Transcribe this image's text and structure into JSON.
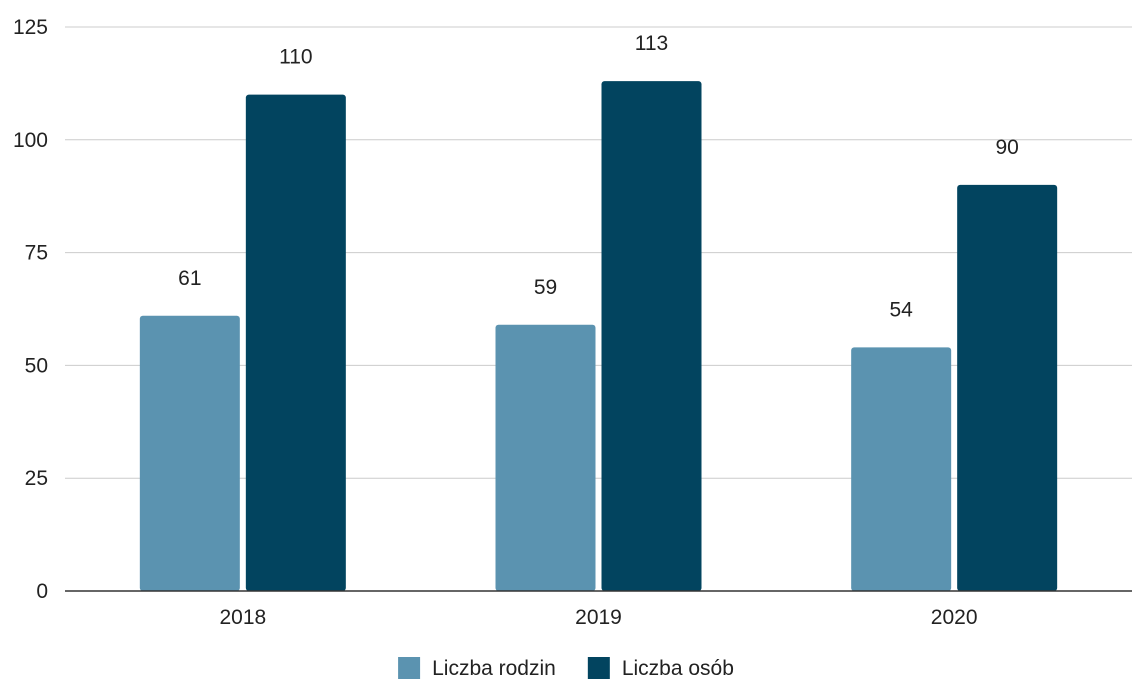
{
  "chart_data": {
    "type": "bar",
    "categories": [
      "2018",
      "2019",
      "2020"
    ],
    "series": [
      {
        "name": "Liczba rodzin",
        "values": [
          61,
          59,
          54
        ],
        "color": "#5b93b0"
      },
      {
        "name": "Liczba osób",
        "values": [
          110,
          113,
          90
        ],
        "color": "#02445f"
      }
    ],
    "ylim": [
      0,
      125
    ],
    "yticks": [
      "0",
      "25",
      "50",
      "75",
      "100",
      "125"
    ],
    "grid": true,
    "legend_position": "bottom"
  }
}
